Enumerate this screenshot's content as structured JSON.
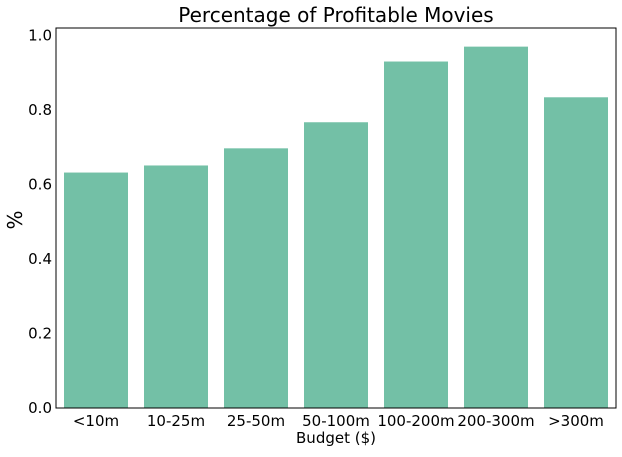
{
  "chart_data": {
    "type": "bar",
    "title": "Percentage of Profitable Movies",
    "xlabel": "Budget ($)",
    "ylabel": "%",
    "categories": [
      "<10m",
      "10-25m",
      "25-50m",
      "50-100m",
      "100-200m",
      "200-300m",
      ">300m"
    ],
    "values": [
      0.632,
      0.651,
      0.697,
      0.767,
      0.93,
      0.97,
      0.834
    ],
    "ylim": [
      0,
      1.02
    ],
    "yticks": [
      "0.0",
      "0.2",
      "0.4",
      "0.6",
      "0.8",
      "1.0"
    ],
    "grid": false,
    "bar_color": "#73c0a6"
  }
}
